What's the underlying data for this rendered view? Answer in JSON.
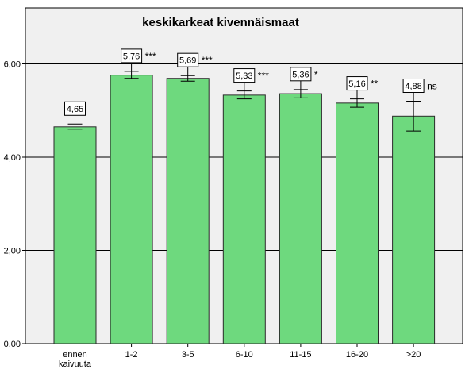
{
  "chart_data": {
    "type": "bar",
    "title": "keskikarkeat kivennäismaat",
    "categories": [
      "ennen\nkaivuuta",
      "1-2",
      "3-5",
      "6-10",
      "11-15",
      "16-20",
      ">20"
    ],
    "values": [
      4.65,
      5.76,
      5.69,
      5.33,
      5.36,
      5.16,
      4.88
    ],
    "value_labels": [
      "4,65",
      "5,76",
      "5,69",
      "5,33",
      "5,36",
      "5,16",
      "4,88"
    ],
    "significance": [
      "",
      "***",
      "***",
      "***",
      "*",
      "**",
      "ns"
    ],
    "error_bars": [
      {
        "low": 4.6,
        "high": 4.71
      },
      {
        "low": 5.69,
        "high": 5.84
      },
      {
        "low": 5.63,
        "high": 5.75
      },
      {
        "low": 5.25,
        "high": 5.42
      },
      {
        "low": 5.27,
        "high": 5.45
      },
      {
        "low": 5.07,
        "high": 5.25
      },
      {
        "low": 4.56,
        "high": 5.2
      }
    ],
    "ylim": [
      0,
      7.2
    ],
    "yticks": [
      0,
      2,
      4,
      6
    ],
    "ytick_labels": [
      "0,00",
      "2,00",
      "4,00",
      "6,00"
    ],
    "xlabel": "",
    "ylabel": "",
    "grid": true,
    "colors": {
      "bar_fill": "#6ed97e",
      "bar_stroke": "#2a2a2a",
      "plot_bg": "#f0f0f0",
      "grid": "#000000"
    }
  }
}
